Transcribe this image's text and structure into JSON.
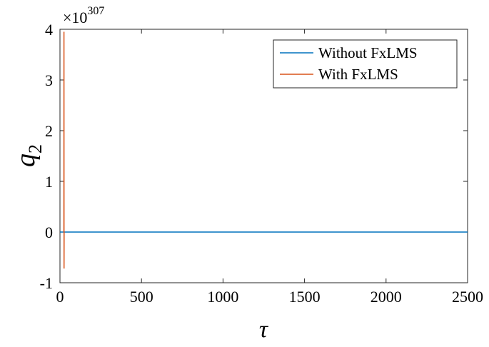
{
  "chart_data": {
    "type": "line",
    "xlabel": "τ",
    "ylabel": "q",
    "ylabel_subscript": "2",
    "y_exponent_prefix": "×10",
    "y_exponent": "307",
    "xlim": [
      0,
      2500
    ],
    "ylim": [
      -1,
      4
    ],
    "x_ticks": [
      0,
      500,
      1000,
      1500,
      2000,
      2500
    ],
    "y_ticks": [
      -1,
      0,
      1,
      2,
      3,
      4
    ],
    "x_tick_labels": [
      "0",
      "500",
      "1000",
      "1500",
      "2000",
      "2500"
    ],
    "y_tick_labels": [
      "-1",
      "0",
      "1",
      "2",
      "3",
      "4"
    ],
    "grid": false,
    "legend_position": "top-right",
    "series": [
      {
        "name": "Without FxLMS",
        "color": "#0072BD",
        "x": [
          0,
          2500
        ],
        "y": [
          0,
          0
        ]
      },
      {
        "name": "With FxLMS",
        "color": "#D95319",
        "x": [
          24,
          24.5,
          25,
          25.5
        ],
        "y": [
          0,
          3.95,
          -0.72,
          0
        ]
      }
    ]
  }
}
